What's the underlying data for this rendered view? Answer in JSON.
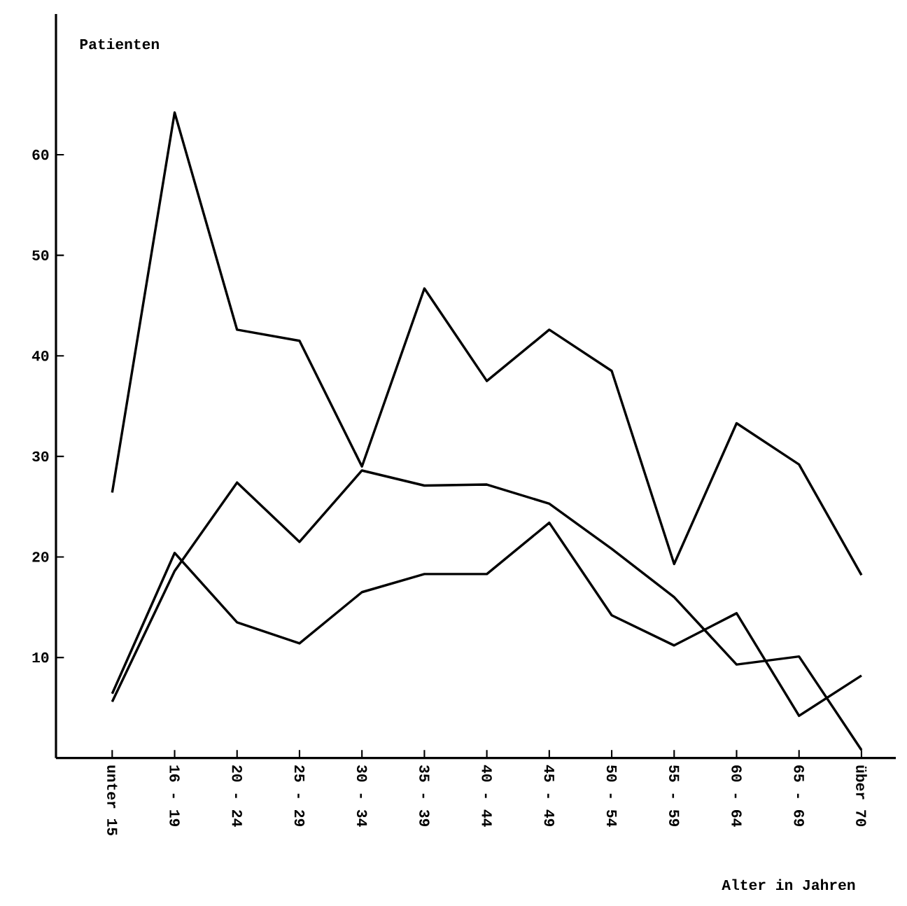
{
  "chart_data": {
    "type": "line",
    "ylabel": "Patienten",
    "xlabel": "Alter in Jahren",
    "categories": [
      "unter 15",
      "16 - 19",
      "20 - 24",
      "25 - 29",
      "30 - 34",
      "35 - 39",
      "40 - 44",
      "45 - 49",
      "50 - 54",
      "55 - 59",
      "60 - 64",
      "65 - 69",
      "über 70"
    ],
    "series": [
      {
        "color": "#000000",
        "values": [
          26.4,
          64.2,
          42.6,
          41.5,
          29.0,
          46.7,
          37.5,
          42.6,
          38.5,
          19.3,
          33.3,
          29.2,
          18.2
        ]
      },
      {
        "color": "#000000",
        "values": [
          5.6,
          18.6,
          27.4,
          21.5,
          28.6,
          27.1,
          27.2,
          25.3,
          20.8,
          16.0,
          9.3,
          10.1,
          0.8
        ]
      },
      {
        "color": "#000000",
        "values": [
          6.4,
          20.4,
          13.5,
          11.4,
          16.5,
          18.3,
          18.3,
          23.4,
          14.2,
          11.2,
          14.4,
          4.2,
          8.2
        ]
      }
    ],
    "ylim": [
      0,
      74
    ],
    "yticks": [
      10,
      20,
      30,
      40,
      50,
      60
    ],
    "grid": false,
    "legend": false,
    "marker": "none",
    "line_style": "solid"
  }
}
